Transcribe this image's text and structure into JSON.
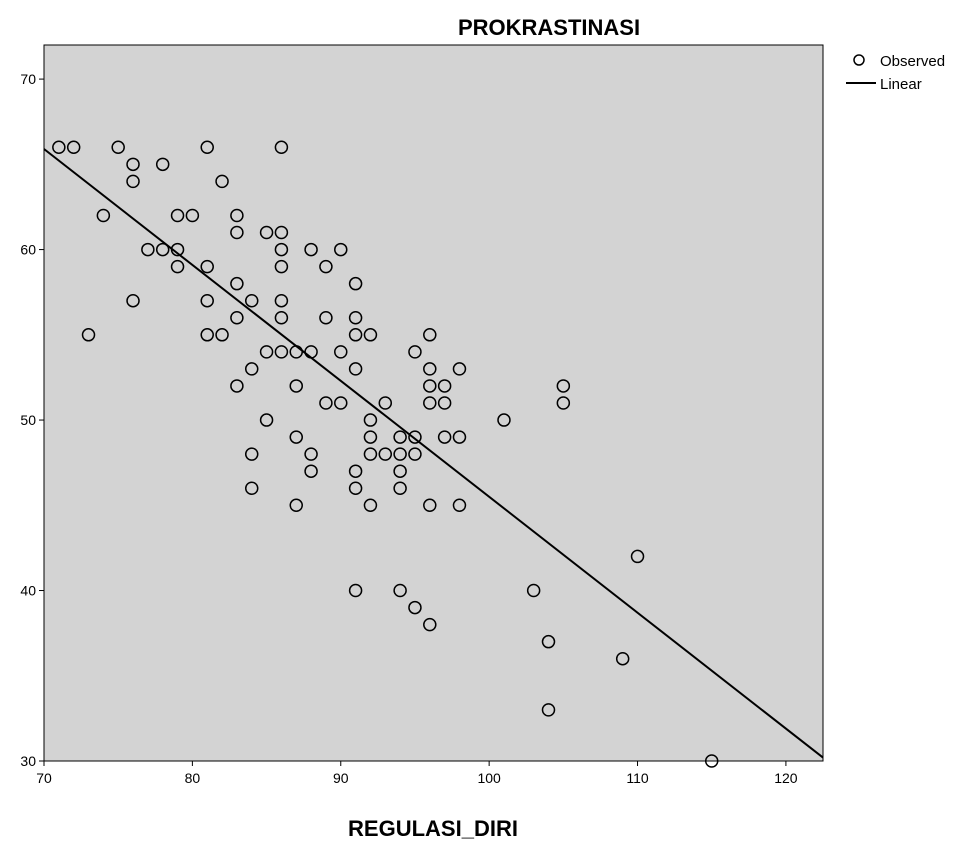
{
  "chart_data": {
    "type": "scatter",
    "title": "PROKRASTINASI",
    "xlabel": "REGULASI_DIRI",
    "ylabel": "",
    "xlim": [
      70,
      122.5
    ],
    "ylim": [
      30,
      72
    ],
    "x_ticks": [
      70,
      80,
      90,
      100,
      110,
      120
    ],
    "y_ticks": [
      30,
      40,
      50,
      60,
      70
    ],
    "grid": false,
    "legend": {
      "position": "top-right",
      "entries": [
        "Observed",
        "Linear"
      ]
    },
    "colors": {
      "plot_background": "#d3d3d3",
      "marker": "#000000",
      "line": "#000000"
    },
    "series": [
      {
        "name": "Observed",
        "marker": "open-circle",
        "points": [
          [
            71,
            66
          ],
          [
            72,
            66
          ],
          [
            73,
            55
          ],
          [
            74,
            62
          ],
          [
            75,
            66
          ],
          [
            76,
            65
          ],
          [
            76,
            64
          ],
          [
            76,
            57
          ],
          [
            77,
            60
          ],
          [
            78,
            65
          ],
          [
            78,
            60
          ],
          [
            79,
            62
          ],
          [
            79,
            60
          ],
          [
            79,
            59
          ],
          [
            80,
            62
          ],
          [
            81,
            66
          ],
          [
            81,
            59
          ],
          [
            81,
            57
          ],
          [
            81,
            55
          ],
          [
            82,
            64
          ],
          [
            82,
            55
          ],
          [
            83,
            62
          ],
          [
            83,
            61
          ],
          [
            83,
            58
          ],
          [
            83,
            56
          ],
          [
            83,
            52
          ],
          [
            84,
            57
          ],
          [
            84,
            53
          ],
          [
            84,
            48
          ],
          [
            84,
            46
          ],
          [
            85,
            61
          ],
          [
            85,
            54
          ],
          [
            85,
            50
          ],
          [
            86,
            66
          ],
          [
            86,
            61
          ],
          [
            86,
            60
          ],
          [
            86,
            59
          ],
          [
            86,
            57
          ],
          [
            86,
            56
          ],
          [
            86,
            54
          ],
          [
            87,
            54
          ],
          [
            87,
            52
          ],
          [
            87,
            49
          ],
          [
            87,
            45
          ],
          [
            88,
            60
          ],
          [
            88,
            54
          ],
          [
            88,
            48
          ],
          [
            88,
            47
          ],
          [
            89,
            59
          ],
          [
            89,
            56
          ],
          [
            89,
            51
          ],
          [
            90,
            60
          ],
          [
            90,
            54
          ],
          [
            90,
            51
          ],
          [
            91,
            58
          ],
          [
            91,
            56
          ],
          [
            91,
            55
          ],
          [
            91,
            53
          ],
          [
            91,
            47
          ],
          [
            91,
            46
          ],
          [
            91,
            40
          ],
          [
            92,
            55
          ],
          [
            92,
            50
          ],
          [
            92,
            49
          ],
          [
            92,
            48
          ],
          [
            92,
            45
          ],
          [
            93,
            51
          ],
          [
            93,
            48
          ],
          [
            94,
            49
          ],
          [
            94,
            48
          ],
          [
            94,
            47
          ],
          [
            94,
            46
          ],
          [
            94,
            40
          ],
          [
            95,
            54
          ],
          [
            95,
            49
          ],
          [
            95,
            48
          ],
          [
            95,
            39
          ],
          [
            96,
            55
          ],
          [
            96,
            53
          ],
          [
            96,
            52
          ],
          [
            96,
            51
          ],
          [
            96,
            45
          ],
          [
            96,
            38
          ],
          [
            97,
            52
          ],
          [
            97,
            51
          ],
          [
            97,
            49
          ],
          [
            98,
            53
          ],
          [
            98,
            49
          ],
          [
            98,
            45
          ],
          [
            101,
            50
          ],
          [
            103,
            40
          ],
          [
            104,
            37
          ],
          [
            104,
            33
          ],
          [
            105,
            52
          ],
          [
            105,
            51
          ],
          [
            109,
            36
          ],
          [
            110,
            42
          ],
          [
            115,
            30
          ]
        ]
      },
      {
        "name": "Linear",
        "line": [
          [
            70,
            65.9
          ],
          [
            122.5,
            30.2
          ]
        ]
      }
    ]
  }
}
